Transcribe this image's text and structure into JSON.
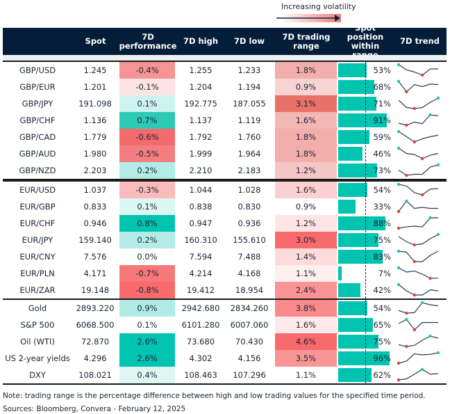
{
  "legend": {
    "title": "Increasing volatility"
  },
  "headers": {
    "name": "",
    "spot": "Spot",
    "perf": "7D performance",
    "high": "7D high",
    "low": "7D low",
    "range": "7D trading range",
    "position": "Spot position within range",
    "trend": "7D trend"
  },
  "colors": {
    "header_bg": "#041e3a",
    "bar": "#00c4b0",
    "trend_line": "#2b3a4e",
    "trend_max": "#1cc7b1",
    "trend_min": "#e0403a"
  },
  "chart_data": {
    "type": "table",
    "sections": [
      {
        "rows": [
          {
            "name": "GBP/USD",
            "spot": "1.245",
            "perf": "-0.4%",
            "perf_color": "#f69394",
            "high": "1.255",
            "low": "1.233",
            "range": "1.8%",
            "range_color": "#f2aeab",
            "position": 53,
            "position_label": "53%",
            "trend": [
              10,
              5,
              3,
              0,
              6,
              6
            ]
          },
          {
            "name": "GBP/EUR",
            "spot": "1.201",
            "perf": "-0.1%",
            "perf_color": "#fde3e3",
            "high": "1.204",
            "low": "1.194",
            "range": "0.9%",
            "range_color": "#f7d3d3",
            "position": 68,
            "position_label": "68%",
            "trend": [
              10,
              0,
              7,
              5,
              7.4,
              7
            ]
          },
          {
            "name": "GBP/JPY",
            "spot": "191.098",
            "perf": "0.1%",
            "perf_color": "#cdf3ee",
            "high": "192.775",
            "low": "187.055",
            "range": "3.1%",
            "range_color": "#e97268",
            "position": 71,
            "position_label": "71%",
            "trend": [
              8,
              1,
              0,
              1,
              6,
              10
            ]
          },
          {
            "name": "GBP/CHF",
            "spot": "1.136",
            "perf": "0.7%",
            "perf_color": "#2cc9b6",
            "high": "1.137",
            "low": "1.119",
            "range": "1.6%",
            "range_color": "#f3b7b4",
            "position": 91,
            "position_label": "91%",
            "trend": [
              2,
              0,
              3,
              1.5,
              10,
              9
            ]
          },
          {
            "name": "GBP/CAD",
            "spot": "1.779",
            "perf": "-0.6%",
            "perf_color": "#f36b6c",
            "high": "1.792",
            "low": "1.760",
            "range": "1.8%",
            "range_color": "#f2aeab",
            "position": 59,
            "position_label": "59%",
            "trend": [
              10,
              5,
              0,
              3,
              5,
              6.5
            ]
          },
          {
            "name": "GBP/AUD",
            "spot": "1.980",
            "perf": "-0.5%",
            "perf_color": "#f47e7f",
            "high": "1.999",
            "low": "1.964",
            "range": "1.8%",
            "range_color": "#f2aeab",
            "position": 46,
            "position_label": "46%",
            "trend": [
              10,
              5,
              4,
              0,
              3.3,
              5
            ]
          },
          {
            "name": "GBP/NZD",
            "spot": "2.203",
            "perf": "0.2%",
            "perf_color": "#b2ece4",
            "high": "2.210",
            "low": "2.183",
            "range": "1.2%",
            "range_color": "#f5c6c5",
            "position": 73,
            "position_label": "73%",
            "trend": [
              5,
              0,
              1,
              1,
              8,
              10
            ]
          }
        ]
      },
      {
        "rows": [
          {
            "name": "EUR/USD",
            "spot": "1.037",
            "perf": "-0.3%",
            "perf_color": "#f9bbbc",
            "high": "1.044",
            "low": "1.028",
            "range": "1.6%",
            "range_color": "#fdcfd0",
            "position": 54,
            "position_label": "54%",
            "trend": [
              10,
              8.5,
              2,
              0,
              5.5,
              6
            ]
          },
          {
            "name": "EUR/GBP",
            "spot": "0.833",
            "perf": "0.1%",
            "perf_color": "#dcf6f2",
            "high": "0.838",
            "low": "0.830",
            "range": "0.9%",
            "range_color": "#ffffff",
            "position": 33,
            "position_label": "33%",
            "trend": [
              0,
              10,
              3,
              4,
              3,
              3
            ]
          },
          {
            "name": "EUR/CHF",
            "spot": "0.946",
            "perf": "0.8%",
            "perf_color": "#00c4b0",
            "high": "0.947",
            "low": "0.936",
            "range": "1.2%",
            "range_color": "#fee4e5",
            "position": 88,
            "position_label": "88%",
            "trend": [
              0,
              1.3,
              2,
              1.3,
              10,
              10
            ]
          },
          {
            "name": "EUR/JPY",
            "spot": "159.140",
            "perf": "0.2%",
            "perf_color": "#b4ece5",
            "high": "160.310",
            "low": "155.610",
            "range": "3.0%",
            "range_color": "#f86b6c",
            "position": 75,
            "position_label": "75%",
            "trend": [
              8,
              3,
              0,
              1,
              6,
              10
            ]
          },
          {
            "name": "EUR/CNY",
            "spot": "7.576",
            "perf": "0.0%",
            "perf_color": "#fbfefd",
            "high": "7.594",
            "low": "7.488",
            "range": "1.4%",
            "range_color": "#fedadb",
            "position": 83,
            "position_label": "83%",
            "trend": [
              10,
              9,
              0,
              0,
              6,
              10
            ]
          },
          {
            "name": "EUR/PLN",
            "spot": "4.171",
            "perf": "-0.7%",
            "perf_color": "#f77878",
            "high": "4.214",
            "low": "4.168",
            "range": "1.1%",
            "range_color": "#fff0f0",
            "position": 7,
            "position_label": "7%",
            "trend": [
              10,
              6,
              7,
              4,
              0,
              0.2
            ]
          },
          {
            "name": "EUR/ZAR",
            "spot": "19.148",
            "perf": "-0.8%",
            "perf_color": "#f86b6c",
            "high": "19.412",
            "low": "18.954",
            "range": "2.4%",
            "range_color": "#fa9394",
            "position": 42,
            "position_label": "42%",
            "trend": [
              10,
              4,
              0,
              0,
              5,
              4
            ]
          }
        ]
      },
      {
        "rows": [
          {
            "name": "Gold",
            "spot": "2893.220",
            "perf": "0.9%",
            "perf_color": "#b0ece5",
            "high": "2942.680",
            "low": "2834.260",
            "range": "3.8%",
            "range_color": "#fa8a8a",
            "position": 54,
            "position_label": "54%",
            "trend": [
              2.5,
              0,
              0.5,
              10,
              8,
              7
            ]
          },
          {
            "name": "S&P 500",
            "spot": "6068.500",
            "perf": "0.1%",
            "perf_color": "#ffffff",
            "high": "6101.280",
            "low": "6007.060",
            "range": "1.6%",
            "range_color": "#ffe8e9",
            "position": 65,
            "position_label": "65%",
            "trend": [
              6,
              10,
              0,
              7,
              7,
              7
            ]
          },
          {
            "name": "Oil (WTI)",
            "spot": "72.870",
            "perf": "2.6%",
            "perf_color": "#00c4b0",
            "high": "73.680",
            "low": "70.430",
            "range": "4.6%",
            "range_color": "#f86b6c",
            "position": 75,
            "position_label": "75%",
            "trend": [
              1.7,
              0,
              1.2,
              6,
              10,
              8
            ]
          },
          {
            "name": "US 2-year yields",
            "spot": "4.296",
            "perf": "2.6%",
            "perf_color": "#00c4b0",
            "high": "4.302",
            "low": "4.156",
            "range": "3.5%",
            "range_color": "#fa9596",
            "position": 96,
            "position_label": "96%",
            "trend": [
              0,
              2,
              9,
              8,
              8.5,
              10
            ]
          },
          {
            "name": "DXY",
            "spot": "108.021",
            "perf": "0.4%",
            "perf_color": "#def7f3",
            "high": "108.463",
            "low": "107.296",
            "range": "1.1%",
            "range_color": "#ffffff",
            "position": 62,
            "position_label": "62%",
            "trend": [
              0,
              1,
              5.5,
              10,
              5.5,
              6
            ]
          }
        ]
      }
    ]
  },
  "footer": {
    "note": "Note: trading range is the percentage difference between high and low trading values for the specified time period.",
    "sources": "Sources: Bloomberg, Convera - February 12, 2025"
  }
}
